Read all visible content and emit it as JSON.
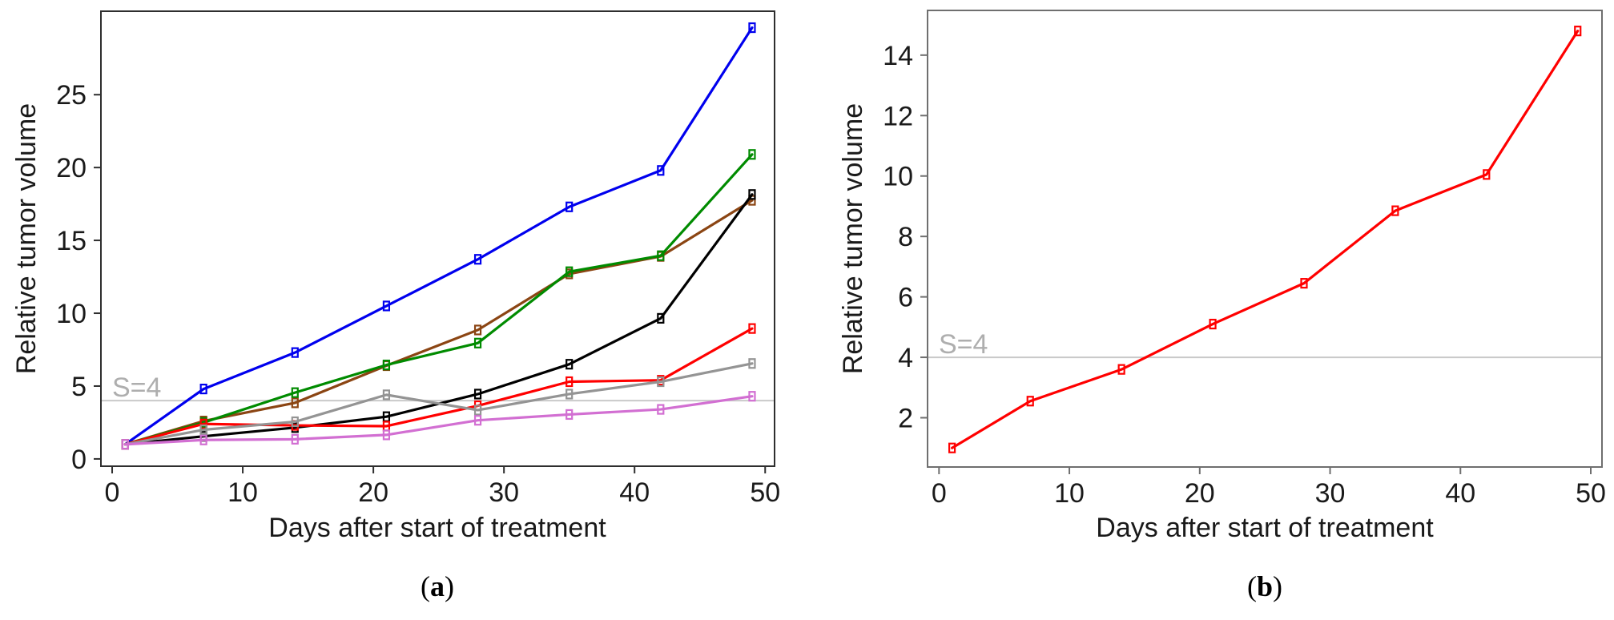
{
  "figure": {
    "background": "#ffffff",
    "description_labels": {
      "y_axis": "Relative tumor volume",
      "x_axis": "Days after start of treatment"
    }
  },
  "chart_data": [
    {
      "id": "a",
      "type": "line",
      "caption_prefix": "(",
      "caption_letter": "a",
      "caption_suffix": ")",
      "xlabel": "Days after start of treatment",
      "ylabel": "Relative tumor volume",
      "x": [
        1,
        7,
        14,
        21,
        28,
        35,
        42,
        49
      ],
      "series": [
        {
          "name": "blue",
          "color": "#0000ee",
          "values": [
            1.0,
            4.8,
            7.3,
            10.5,
            13.7,
            17.3,
            19.8,
            29.6
          ]
        },
        {
          "name": "brown",
          "color": "#8b4513",
          "values": [
            1.0,
            2.6,
            3.85,
            6.4,
            8.85,
            12.7,
            13.9,
            17.75
          ]
        },
        {
          "name": "green",
          "color": "#008b00",
          "values": [
            1.0,
            2.5,
            4.55,
            6.45,
            7.95,
            12.85,
            13.95,
            20.9
          ]
        },
        {
          "name": "black",
          "color": "#000000",
          "values": [
            1.0,
            1.55,
            2.15,
            2.9,
            4.45,
            6.5,
            9.65,
            18.15
          ]
        },
        {
          "name": "red",
          "color": "#ff0000",
          "values": [
            1.0,
            2.4,
            2.3,
            2.25,
            3.65,
            5.3,
            5.4,
            8.95
          ]
        },
        {
          "name": "gray",
          "color": "#949494",
          "values": [
            1.0,
            2.0,
            2.55,
            4.4,
            3.35,
            4.45,
            5.3,
            6.55
          ]
        },
        {
          "name": "violet",
          "color": "#d26fd2",
          "values": [
            1.0,
            1.3,
            1.35,
            1.65,
            2.65,
            3.05,
            3.4,
            4.3
          ]
        }
      ],
      "xticks": [
        0,
        10,
        20,
        30,
        40,
        50
      ],
      "yticks": [
        0,
        5,
        10,
        15,
        20,
        25
      ],
      "xlim": [
        -0.86,
        50.72
      ],
      "ylim": [
        -0.5,
        30.73
      ],
      "annotation": {
        "label": "S=4",
        "y": 4,
        "line_color": "#c9c9c9",
        "text_color": "#aeaeae"
      },
      "marker": "open-square",
      "grid": false,
      "legend": "none",
      "axis_color": "#2e2e2e"
    },
    {
      "id": "b",
      "type": "line",
      "caption_prefix": "(",
      "caption_letter": "b",
      "caption_suffix": ")",
      "xlabel": "Days after start of treatment",
      "ylabel": "Relative tumor volume",
      "x": [
        1,
        7,
        14,
        21,
        28,
        35,
        42,
        49
      ],
      "series": [
        {
          "name": "red",
          "color": "#ff0000",
          "values": [
            1.0,
            2.55,
            3.6,
            5.1,
            6.45,
            8.85,
            10.05,
            14.8
          ]
        }
      ],
      "xticks": [
        0,
        10,
        20,
        30,
        40,
        50
      ],
      "yticks": [
        2,
        4,
        6,
        8,
        10,
        12,
        14
      ],
      "xlim": [
        -0.88,
        50.86
      ],
      "ylim": [
        0.37,
        15.48
      ],
      "annotation": {
        "label": "S=4",
        "y": 4,
        "line_color": "#c9c9c9",
        "text_color": "#aeaeae"
      },
      "marker": "open-square",
      "grid": false,
      "legend": "none",
      "axis_color": "#6f6f6f"
    }
  ]
}
